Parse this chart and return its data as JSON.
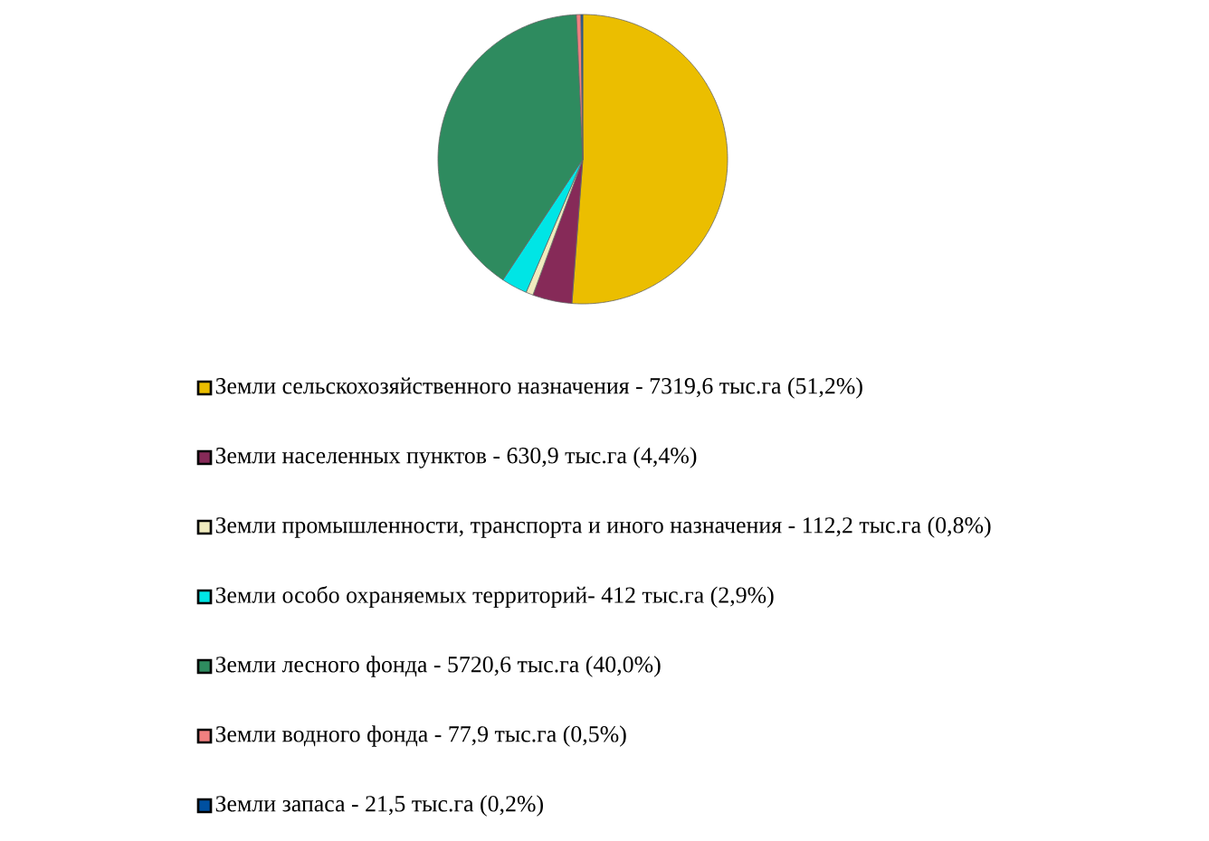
{
  "chart_data": {
    "type": "pie",
    "categories": [
      "Земли сельскохозяйственного назначения  - 7319,6 тыс.га (51,2%)",
      "Земли населенных пунктов - 630,9 тыс.га (4,4%)",
      "Земли промышленности, транспорта и иного назначения - 112,2 тыс.га (0,8%)",
      "Земли особо охраняемых территорий- 412 тыс.га (2,9%)",
      "Земли лесного фонда - 5720,6 тыс.га (40,0%)",
      "Земли водного фонда - 77,9 тыс.га (0,5%)",
      "Земли запаса - 21,5 тыс.га  (0,2%)"
    ],
    "values": [
      51.2,
      4.4,
      0.8,
      2.9,
      40.0,
      0.5,
      0.2
    ],
    "colors": [
      "#ebbe00",
      "#862a58",
      "#f0ebbe",
      "#00e5e5",
      "#2e8b5f",
      "#f08080",
      "#0050a0"
    ],
    "legend": "bottom"
  }
}
